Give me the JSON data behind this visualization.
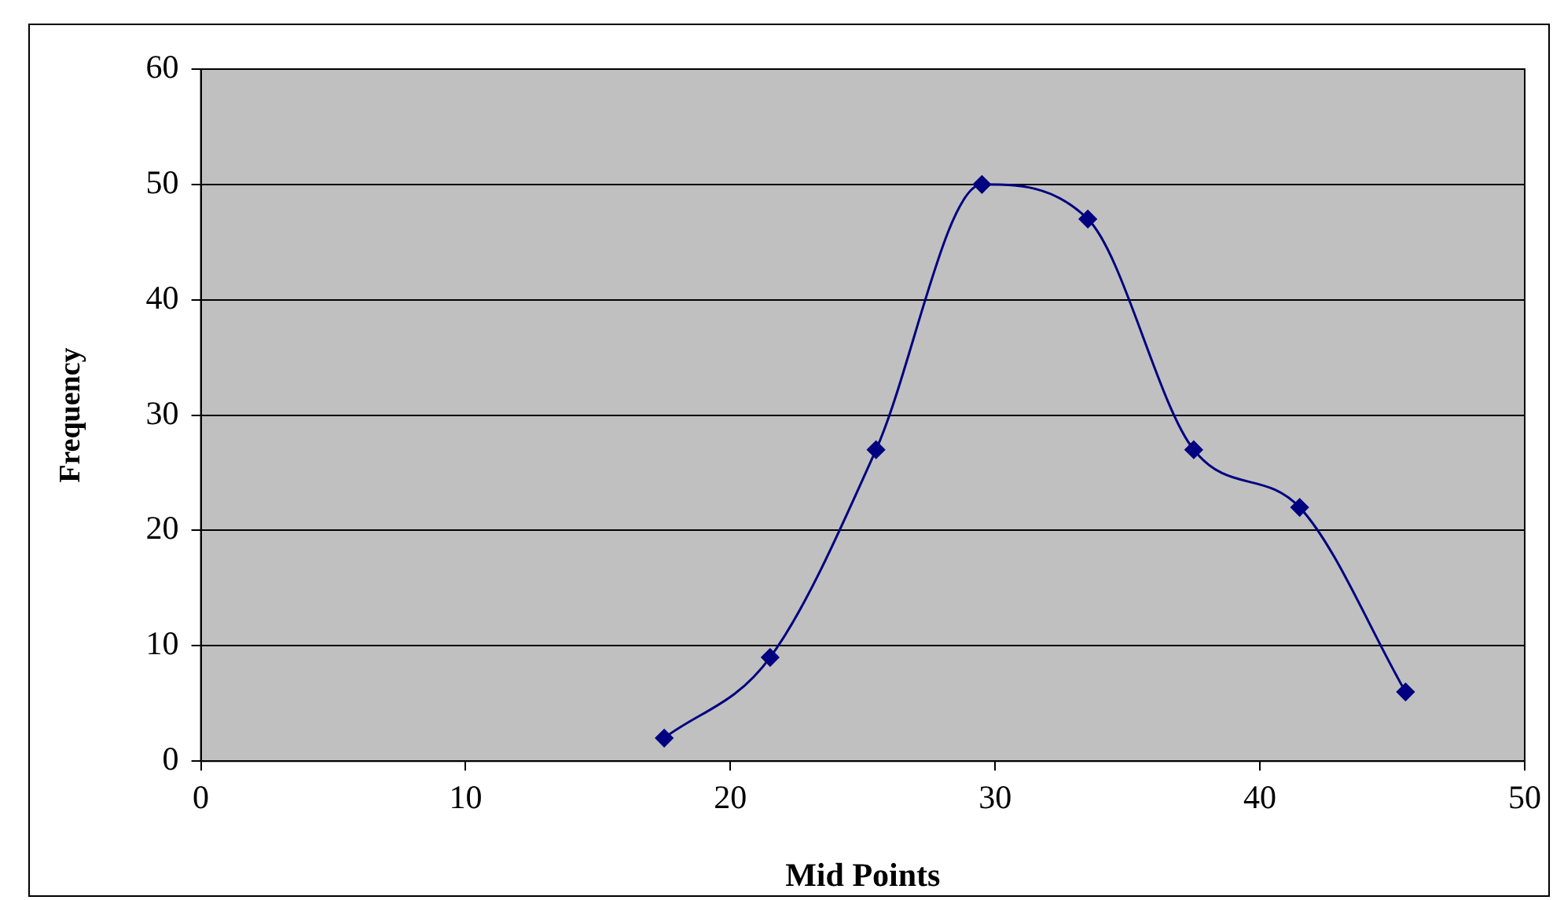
{
  "chart_data": {
    "type": "line",
    "xlabel": "Mid Points",
    "ylabel": "Frequency",
    "x": [
      17.5,
      21.5,
      25.5,
      29.5,
      33.5,
      37.5,
      41.5,
      45.5
    ],
    "series": [
      {
        "color": "#000080",
        "values": [
          2,
          9,
          27,
          50,
          47,
          27,
          22,
          6
        ]
      }
    ],
    "xlim": [
      0,
      50
    ],
    "xticks": [
      0,
      10,
      20,
      30,
      40,
      50
    ],
    "ylim": [
      0,
      60
    ],
    "yticks": [
      0,
      10,
      20,
      30,
      40,
      50,
      60
    ],
    "grid": "y",
    "legend": false,
    "marker": "diamond",
    "line_style": "solid"
  }
}
